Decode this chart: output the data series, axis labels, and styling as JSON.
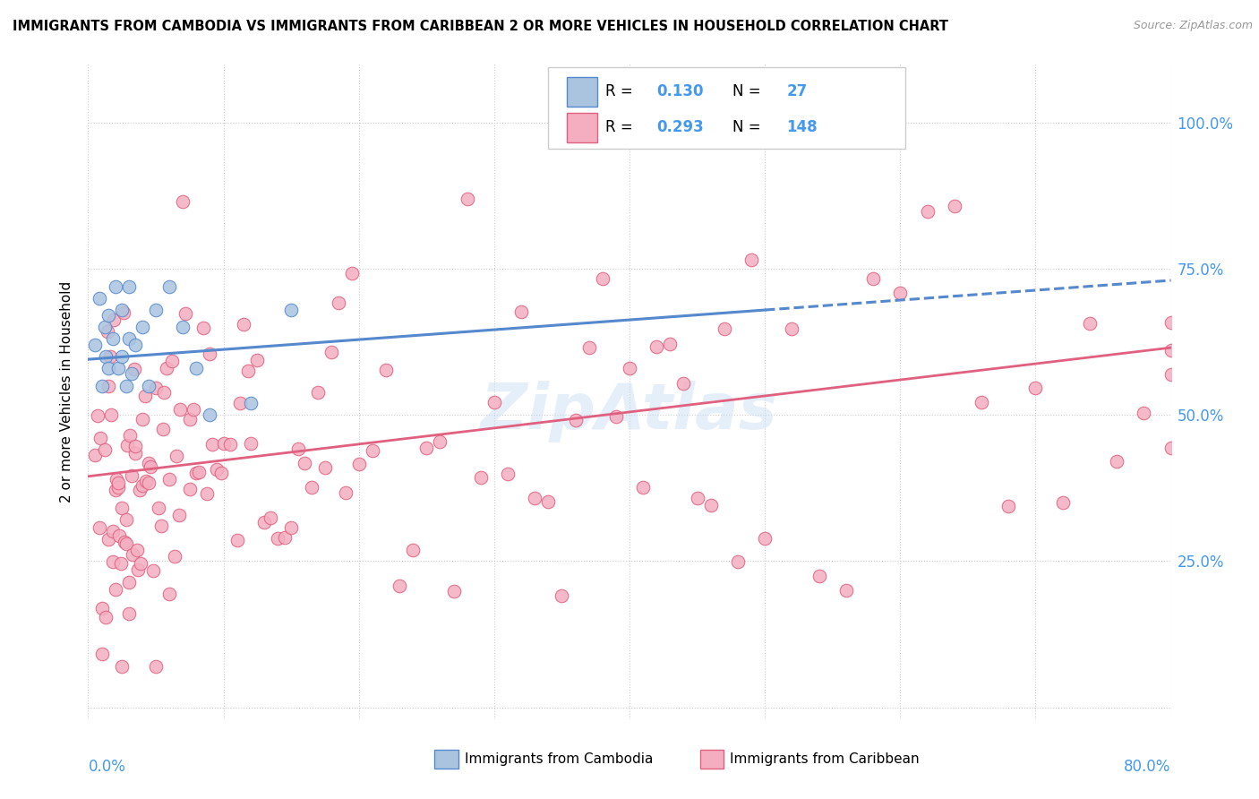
{
  "title": "IMMIGRANTS FROM CAMBODIA VS IMMIGRANTS FROM CARIBBEAN 2 OR MORE VEHICLES IN HOUSEHOLD CORRELATION CHART",
  "source": "Source: ZipAtlas.com",
  "ylabel": "2 or more Vehicles in Household",
  "ytick_vals": [
    0.0,
    0.25,
    0.5,
    0.75,
    1.0
  ],
  "ytick_labels": [
    "",
    "25.0%",
    "50.0%",
    "75.0%",
    "100.0%"
  ],
  "xlim": [
    0.0,
    0.8
  ],
  "ylim": [
    -0.02,
    1.1
  ],
  "cambodia_color": "#aac4e0",
  "cambodia_edge": "#5588cc",
  "cambodia_line_color": "#5588cc",
  "caribbean_color": "#f4aec0",
  "caribbean_edge": "#e06080",
  "caribbean_line_color": "#e06080",
  "cambodia_R": 0.13,
  "cambodia_N": 27,
  "caribbean_R": 0.293,
  "caribbean_N": 148,
  "legend_label_1": "Immigrants from Cambodia",
  "legend_label_2": "Immigrants from Caribbean",
  "watermark": "ZipAtlas",
  "tick_color": "#4499ee",
  "camb_line_x0": 0.0,
  "camb_line_y0": 0.595,
  "camb_line_x1": 0.8,
  "camb_line_y1": 0.73,
  "carib_line_x0": 0.0,
  "carib_line_y0": 0.395,
  "carib_line_x1": 0.8,
  "carib_line_y1": 0.615
}
